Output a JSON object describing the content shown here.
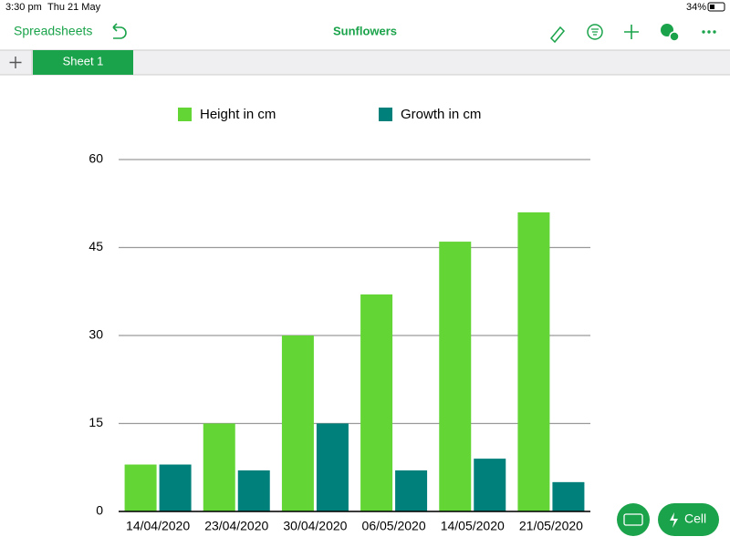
{
  "status_bar": {
    "time": "3:30 pm",
    "date": "Thu 21 May",
    "battery": "34%"
  },
  "toolbar": {
    "back": "Spreadsheets",
    "title": "Sunflowers"
  },
  "tabs": [
    "Sheet 1"
  ],
  "buttons": {
    "cell": "Cell"
  },
  "chart_data": {
    "type": "bar",
    "categories": [
      "14/04/2020",
      "23/04/2020",
      "30/04/2020",
      "06/05/2020",
      "14/05/2020",
      "21/05/2020"
    ],
    "series": [
      {
        "name": "Height in cm",
        "color": "#63d636",
        "values": [
          8,
          15,
          30,
          37,
          46,
          51
        ]
      },
      {
        "name": "Growth in cm",
        "color": "#00807a",
        "values": [
          8,
          7,
          15,
          7,
          9,
          5
        ]
      }
    ],
    "ylim": [
      0,
      60
    ],
    "yticks": [
      0,
      15,
      30,
      45,
      60
    ],
    "grid": true,
    "legend": "top"
  }
}
